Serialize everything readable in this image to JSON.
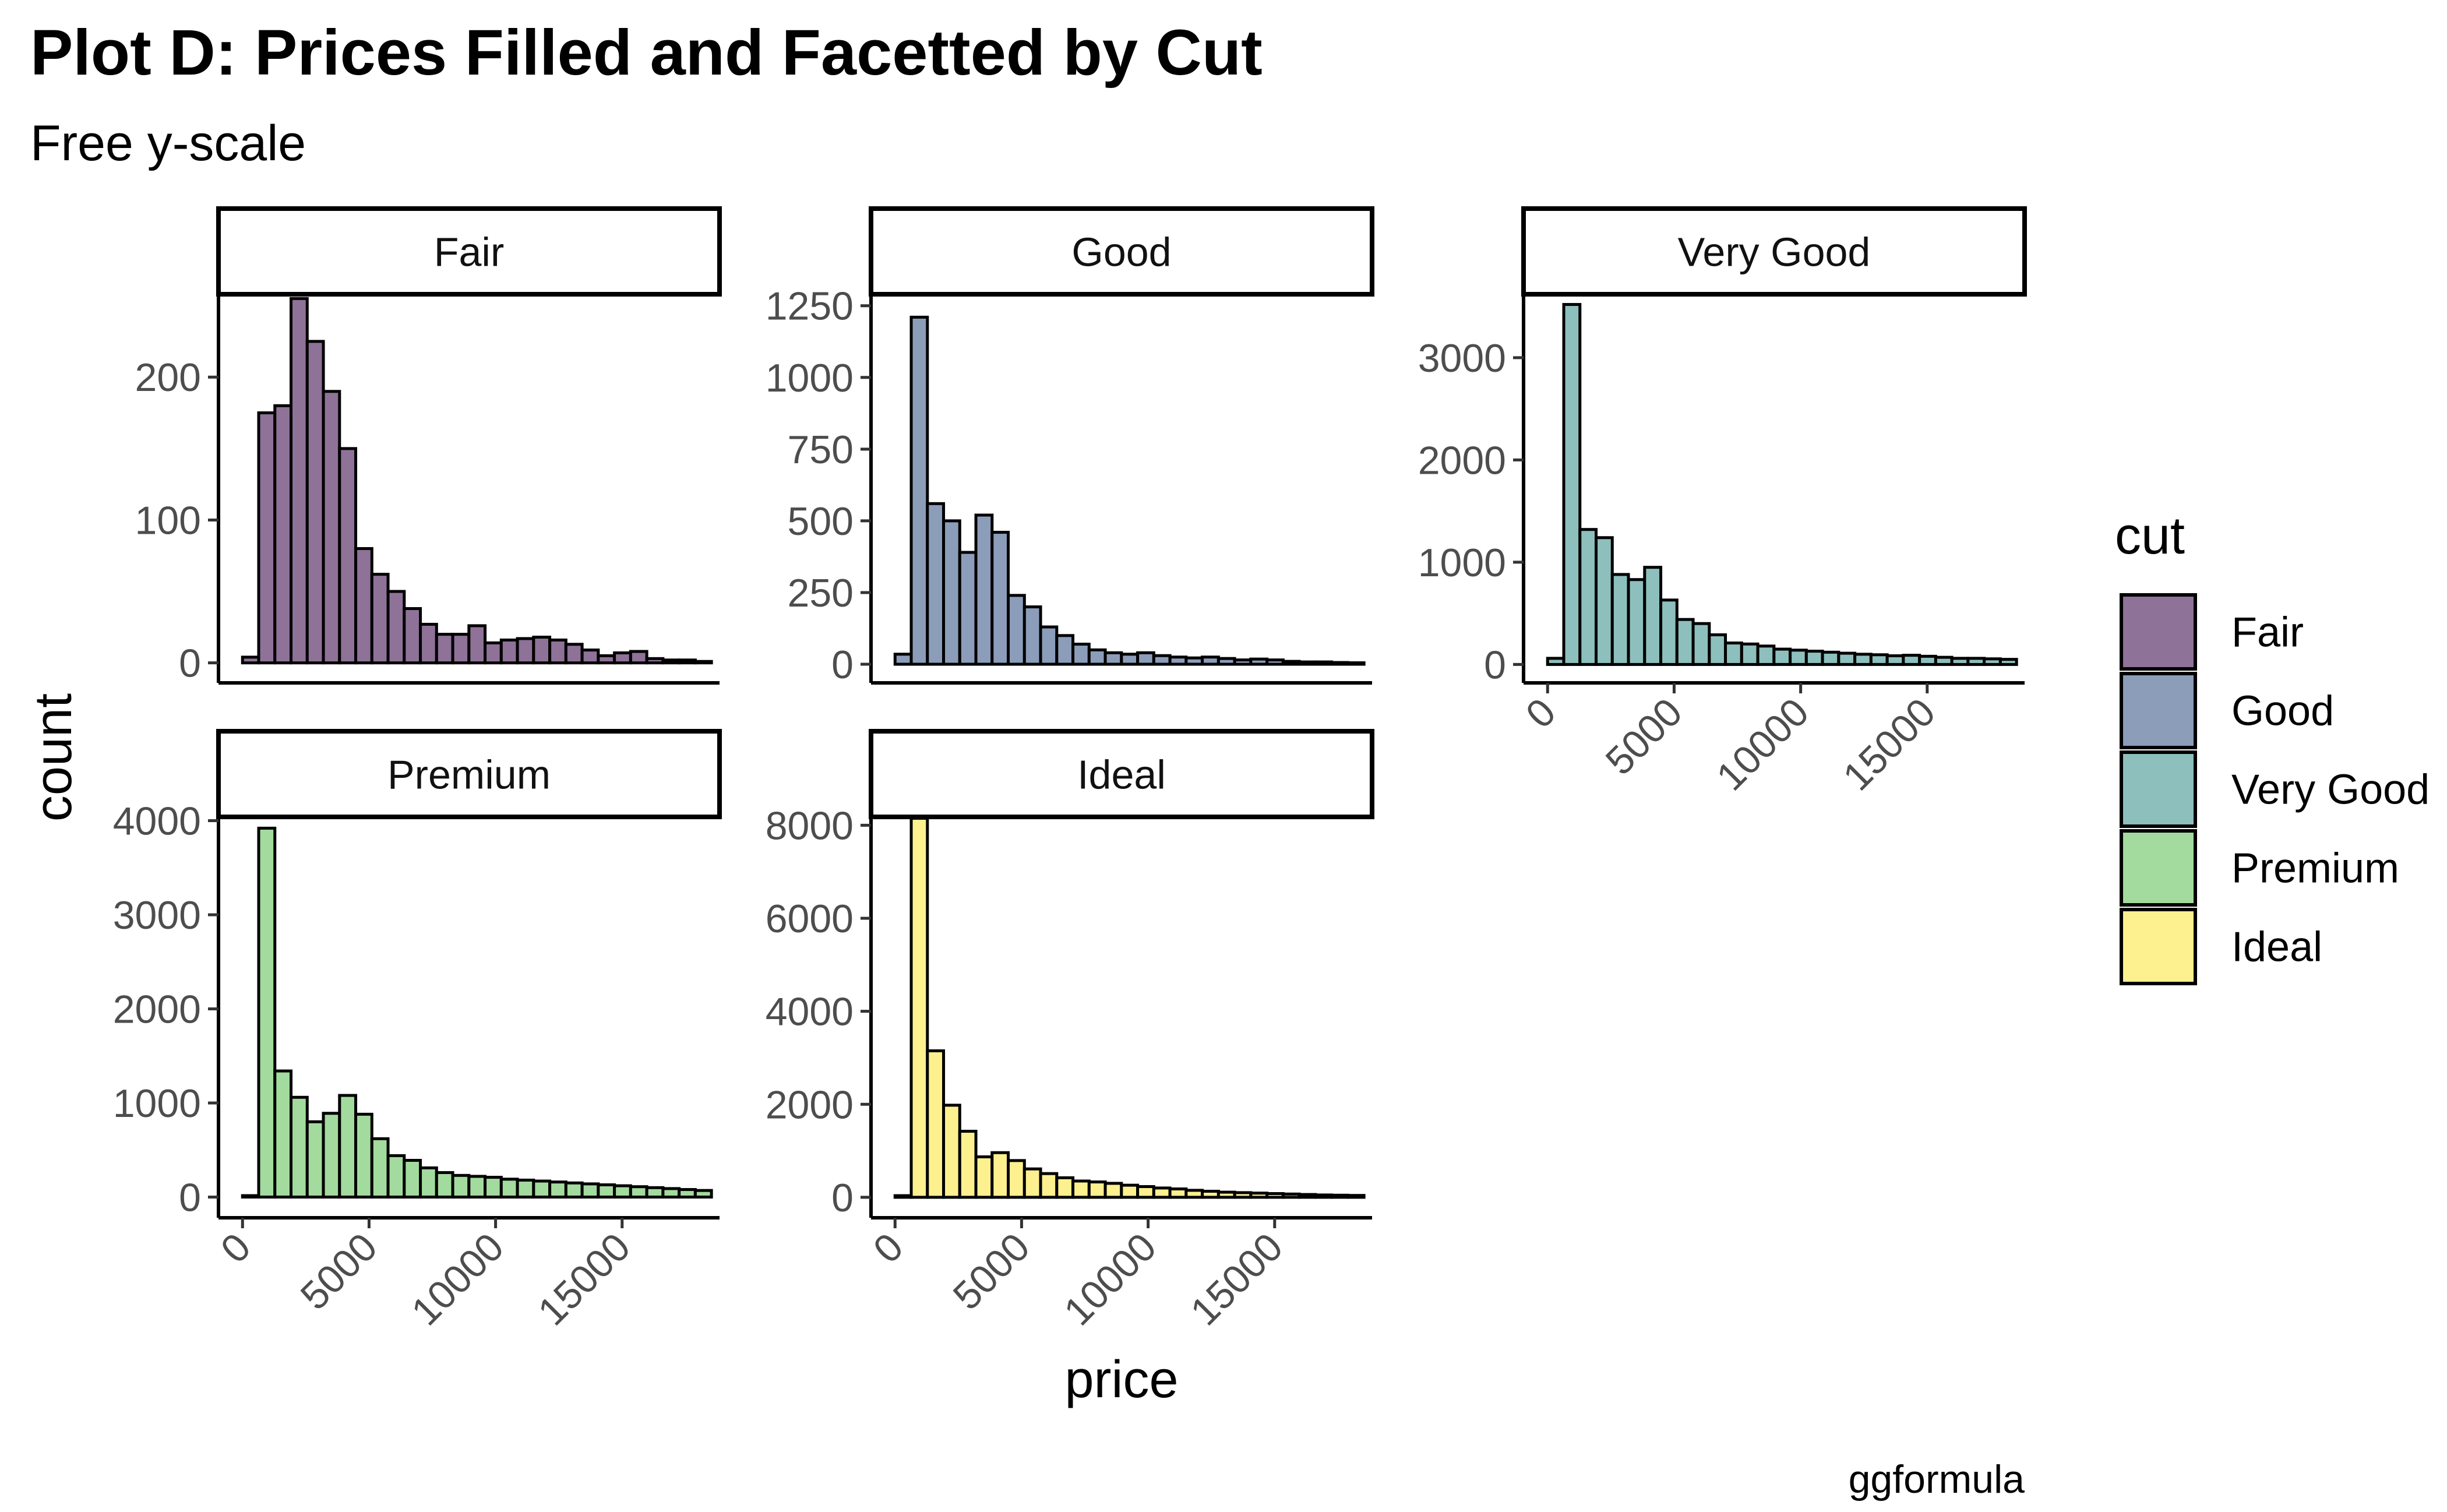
{
  "title": "Plot D: Prices Filled and Facetted by Cut",
  "subtitle": "Free y-scale",
  "caption": "ggformula",
  "chart_data": {
    "type": "bar",
    "title": "Plot D: Prices Filled and Facetted by Cut",
    "subtitle": "Free y-scale",
    "xlabel": "price",
    "ylabel": "count",
    "caption": "ggformula",
    "grid": false,
    "legend": {
      "title": "cut",
      "placement": "right"
    },
    "x_ticks": [
      0,
      5000,
      10000,
      15000
    ],
    "bins": [
      0,
      639,
      1278,
      1917,
      2556,
      3195,
      3834,
      4473,
      5112,
      5751,
      6390,
      7029,
      7668,
      8307,
      8946,
      9585,
      10224,
      10863,
      11502,
      12141,
      12780,
      13419,
      14058,
      14697,
      15336,
      15975,
      16614,
      17253,
      17892,
      18531
    ],
    "xlim": [
      -950,
      18850
    ],
    "facets": [
      {
        "name": "Fair",
        "color": "#8F7298",
        "ylim": [
          -14,
          258
        ],
        "y_ticks": [
          0,
          100,
          200
        ],
        "values": [
          4,
          175,
          180,
          255,
          225,
          190,
          150,
          80,
          62,
          50,
          38,
          27,
          20,
          20,
          26,
          14,
          16,
          17,
          18,
          16,
          13,
          9,
          5,
          7,
          8,
          3,
          2,
          2,
          1,
          0
        ]
      },
      {
        "name": "Good",
        "color": "#8C9DBA",
        "ylim": [
          -65,
          1290
        ],
        "y_ticks": [
          0,
          250,
          500,
          750,
          1000,
          1250
        ],
        "values": [
          35,
          1210,
          560,
          500,
          390,
          520,
          460,
          240,
          200,
          130,
          100,
          70,
          50,
          40,
          35,
          40,
          30,
          25,
          22,
          25,
          20,
          15,
          18,
          15,
          10,
          8,
          8,
          6,
          5,
          0
        ]
      },
      {
        "name": "Very Good",
        "color": "#8DBFBD",
        "ylim": [
          -180,
          3620
        ],
        "y_ticks": [
          0,
          1000,
          2000,
          3000
        ],
        "values": [
          60,
          3520,
          1320,
          1240,
          880,
          830,
          950,
          630,
          440,
          400,
          290,
          210,
          200,
          180,
          150,
          140,
          130,
          120,
          110,
          100,
          95,
          85,
          90,
          80,
          70,
          60,
          60,
          55,
          50,
          0
        ]
      },
      {
        "name": "Premium",
        "color": "#A3DB9E",
        "ylim": [
          -220,
          4040
        ],
        "y_ticks": [
          0,
          1000,
          2000,
          3000,
          4000
        ],
        "values": [
          15,
          3920,
          1340,
          1060,
          800,
          890,
          1080,
          880,
          620,
          440,
          390,
          310,
          260,
          230,
          220,
          210,
          190,
          180,
          170,
          160,
          150,
          140,
          130,
          120,
          110,
          100,
          90,
          80,
          70,
          0
        ]
      },
      {
        "name": "Ideal",
        "color": "#FDF08E",
        "ylim": [
          -440,
          8180
        ],
        "y_ticks": [
          0,
          2000,
          4000,
          6000,
          8000
        ],
        "values": [
          35,
          8150,
          3150,
          1980,
          1420,
          870,
          960,
          790,
          610,
          510,
          420,
          350,
          330,
          300,
          260,
          230,
          200,
          180,
          150,
          130,
          110,
          100,
          90,
          80,
          70,
          60,
          50,
          45,
          40,
          0
        ]
      }
    ]
  }
}
